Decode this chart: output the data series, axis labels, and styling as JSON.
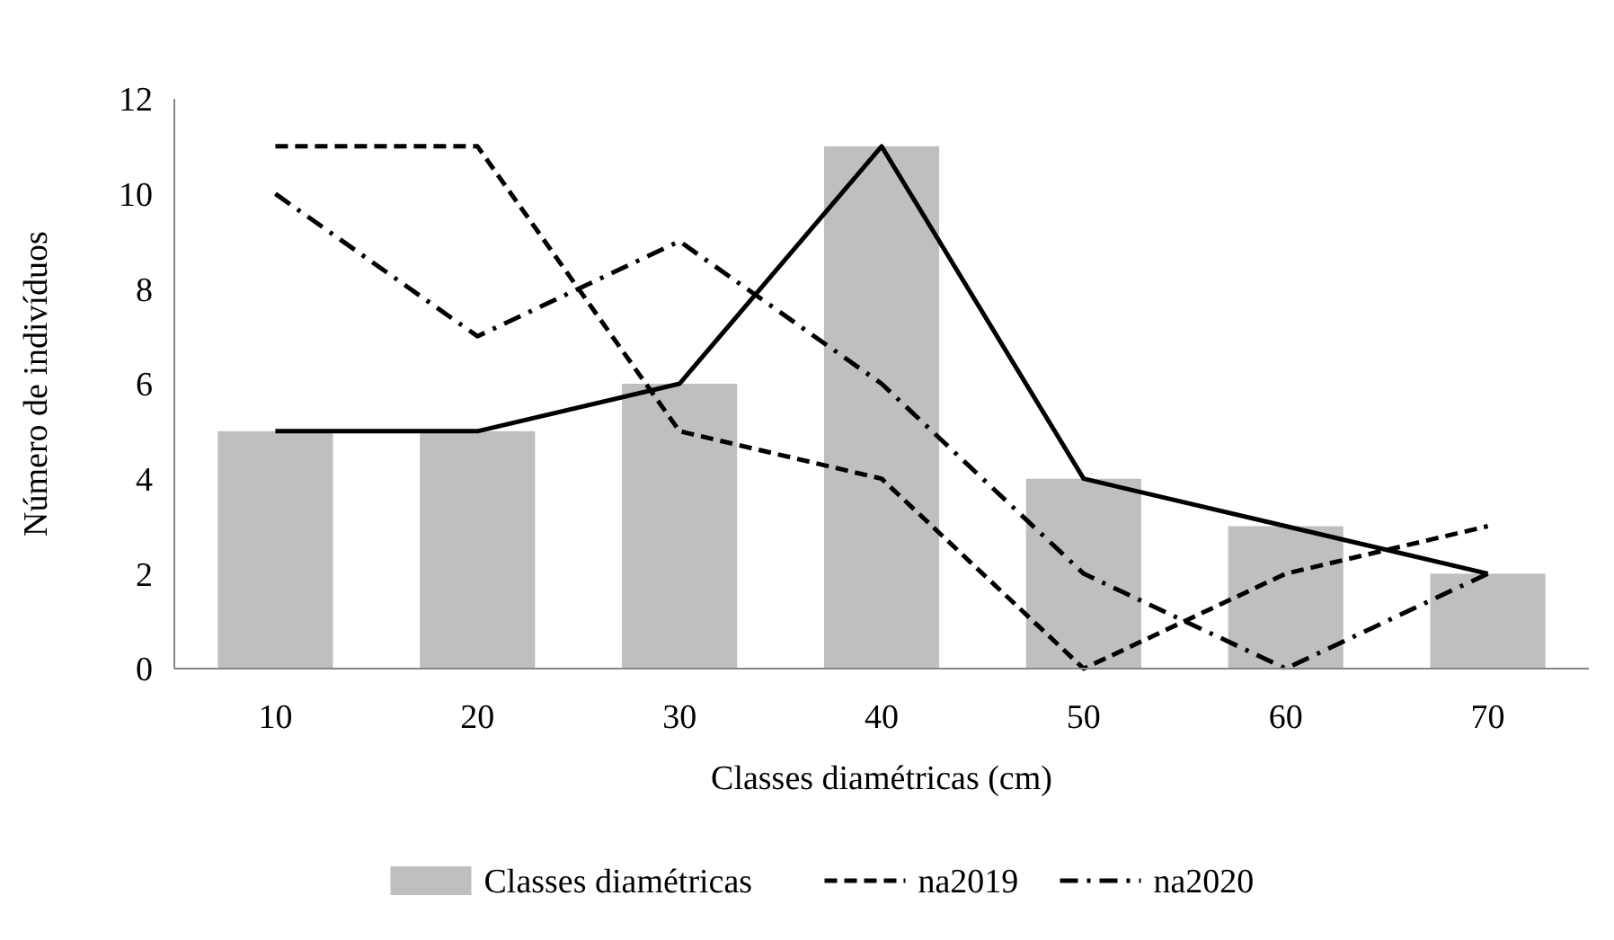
{
  "chart_data": {
    "type": "bar",
    "xlabel": "Classes diamétricas (cm)",
    "ylabel": "Número de indivíduos",
    "categories": [
      "10",
      "20",
      "30",
      "40",
      "50",
      "60",
      "70"
    ],
    "series": [
      {
        "name": "Classes diamétricas",
        "color": "#bfbfbf",
        "values": [
          5,
          5,
          6,
          11,
          4,
          3,
          2
        ]
      },
      {
        "type": "line",
        "color": "#000000",
        "line_style": "solid",
        "values": [
          5,
          5,
          6,
          11,
          4,
          3,
          2
        ]
      },
      {
        "name": "na2019",
        "type": "line",
        "color": "#000000",
        "line_style": "dashed",
        "values": [
          11,
          11,
          5,
          4,
          0,
          2,
          3
        ]
      },
      {
        "name": "na2020",
        "type": "line",
        "color": "#000000",
        "line_style": "dashdot",
        "values": [
          10,
          7,
          9,
          6,
          2,
          0,
          2
        ]
      }
    ],
    "ylim": [
      0,
      12
    ],
    "yticks": [
      0,
      2,
      4,
      6,
      8,
      10,
      12
    ],
    "grid": false,
    "legend": "bottom"
  }
}
